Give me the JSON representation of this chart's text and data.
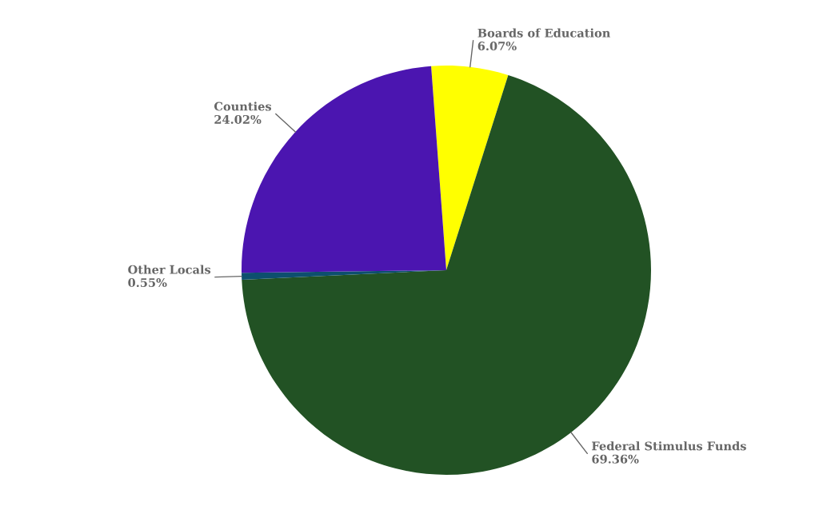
{
  "chart_data": {
    "type": "pie",
    "categories": [
      "Boards of Education",
      "Federal Stimulus Funds",
      "Other Locals",
      "Counties"
    ],
    "values": [
      6.07,
      69.36,
      0.55,
      24.02
    ],
    "value_labels": [
      "6.07%",
      "69.36%",
      "0.55%",
      "24.02%"
    ],
    "colors": [
      "#ffff00",
      "#225224",
      "#0d4f6e",
      "#4b15b0"
    ],
    "legend": false
  }
}
